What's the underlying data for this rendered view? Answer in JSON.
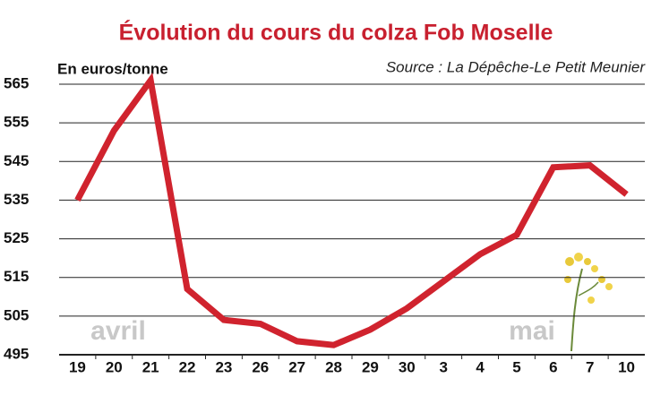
{
  "chart_data": {
    "type": "line",
    "title": "Évolution du cours du colza Fob Moselle",
    "y_label": "En euros/tonne",
    "source": "Source : La Dépêche-Le Petit Meunier",
    "annotations": [
      "avril",
      "mai"
    ],
    "categories": [
      "19",
      "20",
      "21",
      "22",
      "23",
      "26",
      "27",
      "28",
      "29",
      "30",
      "3",
      "4",
      "5",
      "6",
      "7",
      "10"
    ],
    "values": [
      535,
      553,
      566,
      512,
      504,
      503,
      498.5,
      497.5,
      501.5,
      507,
      514,
      521,
      526,
      543.5,
      544,
      536.5
    ],
    "color": "#d0232e",
    "ylim": [
      495,
      565
    ],
    "yticks": [
      495,
      505,
      515,
      525,
      535,
      545,
      555,
      565
    ],
    "grid": true
  }
}
